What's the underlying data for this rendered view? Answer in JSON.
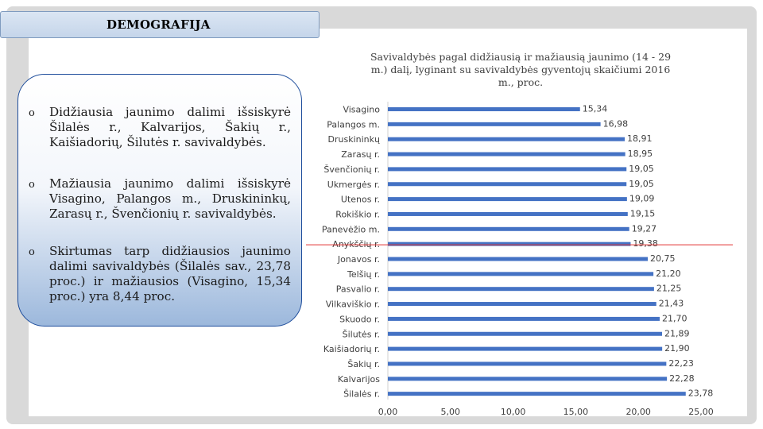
{
  "slide": {
    "title": "DEMOGRAFIJA",
    "bullets": [
      "Didžiausia jaunimo dalimi išsiskyrė Šilalės r., Kalvarijos, Šakių r., Kaišiadorių, Šilutės r. savivaldybės.",
      "Mažiausia jaunimo dalimi išsiskyrė Visagino, Palangos m., Druskininkų, Zarasų r., Švenčionių r. savivaldybės.",
      "Skirtumas tarp didžiausios jaunimo dalimi savivaldybės (Šilalės sav., 23,78 proc.) ir mažiausios (Visagino, 15,34 proc.) yra 8,44 proc."
    ],
    "bullet_marker": "o"
  },
  "chart_data": {
    "type": "bar",
    "orientation": "horizontal",
    "title": "Savivaldybės pagal didžiausią ir mažiausią jaunimo (14 - 29 m.) dalį, lyginant su savivaldybės gyventojų skaičiumi 2016 m., proc.",
    "categories": [
      "Visagino",
      "Palangos m.",
      "Druskininkų",
      "Zarasų r.",
      "Švenčionių r.",
      "Ukmergės r.",
      "Utenos r.",
      "Rokiškio r.",
      "Panevėžio m.",
      "Anykščių r.",
      "Jonavos r.",
      "Telšių r.",
      "Pasvalio r.",
      "Vilkaviškio r.",
      "Skuodo r.",
      "Šilutės r.",
      "Kaišiadorių r.",
      "Šakių r.",
      "Kalvarijos",
      "Šilalės r."
    ],
    "values": [
      15.34,
      16.98,
      18.91,
      18.95,
      19.05,
      19.05,
      19.09,
      19.15,
      19.27,
      19.38,
      20.75,
      21.2,
      21.25,
      21.43,
      21.7,
      21.89,
      21.9,
      22.23,
      22.28,
      23.78
    ],
    "value_labels": [
      "15,34",
      "16,98",
      "18,91",
      "18,95",
      "19,05",
      "19,05",
      "19,09",
      "19,15",
      "19,27",
      "19,38",
      "20,75",
      "21,20",
      "21,25",
      "21,43",
      "21,70",
      "21,89",
      "21,90",
      "22,23",
      "22,28",
      "23,78"
    ],
    "xlim": [
      0,
      25
    ],
    "xticks": [
      "0,00",
      "5,00",
      "10,00",
      "15,00",
      "20,00",
      "25,00"
    ],
    "xtick_values": [
      0,
      5,
      10,
      15,
      20,
      25
    ],
    "bar_color": "#4472c4",
    "separator_color": "#e03030",
    "separator_after_category": "Anykščių r."
  }
}
